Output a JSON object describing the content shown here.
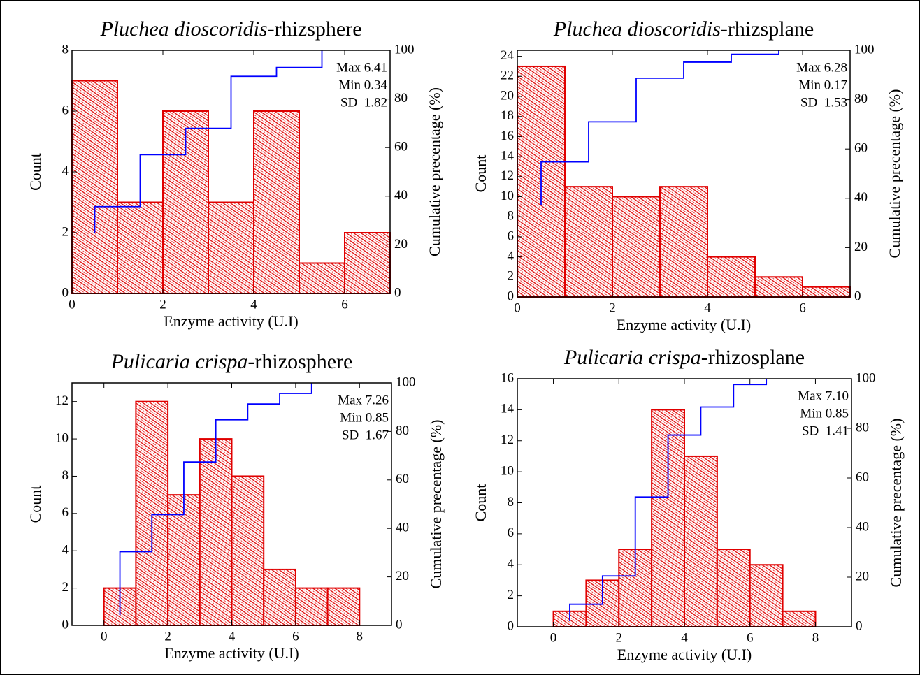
{
  "chart_data": [
    {
      "type": "histogram",
      "title": {
        "species": "Pluchea dioscoridis",
        "part": "-rhizsphere"
      },
      "xlabel": "Enzyme activity (U.I)",
      "ylabel": "Count",
      "y2label": "Cumulative precentage (%)",
      "bins": [
        0,
        1,
        2,
        3,
        4,
        5,
        6,
        7
      ],
      "counts": [
        7,
        3,
        6,
        3,
        6,
        1,
        2
      ],
      "color": "#e00000",
      "xlim": [
        0,
        7
      ],
      "xticks": [
        0,
        2,
        4,
        6
      ],
      "ylim": [
        0,
        8
      ],
      "yticks": [
        0,
        2,
        4,
        6,
        8
      ],
      "y2lim": [
        0,
        100
      ],
      "y2ticks": [
        0,
        20,
        40,
        60,
        80,
        100
      ],
      "cumulative": {
        "axis": "y2",
        "color": "#0000ff",
        "x": [
          0.5,
          0.5,
          1.5,
          1.5,
          2.5,
          2.5,
          3.5,
          3.5,
          4.5,
          4.5,
          5.5,
          5.5
        ],
        "values": [
          25,
          35.7,
          35.7,
          57.1,
          57.1,
          67.9,
          67.9,
          89.3,
          89.3,
          92.9,
          92.9,
          100
        ]
      },
      "stats": [
        "Max 6.41",
        "Min 0.34",
        "SD  1.82"
      ]
    },
    {
      "type": "histogram",
      "title": {
        "species": "Pluchea dioscoridis",
        "part": "-rhizsplane"
      },
      "xlabel": "Enzyme activity (U.I)",
      "ylabel": "Count",
      "y2label": "Cumulative precentage (%)",
      "bins": [
        0,
        1,
        2,
        3,
        4,
        5,
        6,
        7
      ],
      "counts": [
        23,
        11,
        10,
        11,
        4,
        2,
        1
      ],
      "color": "#e00000",
      "xlim": [
        0,
        7
      ],
      "xticks": [
        0,
        2,
        4,
        6
      ],
      "ylim": [
        0,
        24.6
      ],
      "yticks": [
        0,
        2,
        4,
        6,
        8,
        10,
        12,
        14,
        16,
        18,
        20,
        22,
        24
      ],
      "y2lim": [
        0,
        100
      ],
      "y2ticks": [
        0,
        20,
        40,
        60,
        80,
        100
      ],
      "cumulative": {
        "axis": "y2",
        "color": "#0000ff",
        "x": [
          0.5,
          0.5,
          1.5,
          1.5,
          2.5,
          2.5,
          3.5,
          3.5,
          4.5,
          4.5,
          5.5,
          5.5
        ],
        "values": [
          37.1,
          54.8,
          54.8,
          71,
          71,
          88.7,
          88.7,
          95.2,
          95.2,
          98.4,
          98.4,
          100
        ]
      },
      "stats": [
        "Max 6.28",
        "Min 0.17",
        "SD  1.53"
      ]
    },
    {
      "type": "histogram",
      "title": {
        "species": "Pulicaria crispa",
        "part": "-rhizosphere"
      },
      "xlabel": "Enzyme activity (U.I)",
      "ylabel": "Count",
      "y2label": "Cumulative precentage (%)",
      "bins": [
        0,
        1,
        2,
        3,
        4,
        5,
        6,
        7,
        8
      ],
      "counts": [
        2,
        12,
        7,
        10,
        8,
        3,
        2,
        2
      ],
      "color": "#e00000",
      "xlim": [
        -1,
        9
      ],
      "xticks": [
        0,
        2,
        4,
        6,
        8
      ],
      "ylim": [
        0,
        13
      ],
      "yticks": [
        0,
        2,
        4,
        6,
        8,
        10,
        12
      ],
      "y2lim": [
        0,
        100
      ],
      "y2ticks": [
        0,
        20,
        40,
        60,
        80,
        100
      ],
      "cumulative": {
        "axis": "y2",
        "color": "#0000ff",
        "x": [
          0.5,
          0.5,
          1.5,
          1.5,
          2.5,
          2.5,
          3.5,
          3.5,
          4.5,
          4.5,
          5.5,
          5.5,
          6.5,
          6.5
        ],
        "values": [
          4.3,
          30.4,
          30.4,
          45.7,
          45.7,
          67.4,
          67.4,
          84.8,
          84.8,
          91.3,
          91.3,
          95.7,
          95.7,
          100
        ]
      },
      "stats": [
        "Max 7.26",
        "Min 0.85",
        "SD  1.67"
      ]
    },
    {
      "type": "histogram",
      "title": {
        "species": "Pulicaria crispa",
        "part": "-rhizosplane"
      },
      "xlabel": "Enzyme activity (U.I)",
      "ylabel": "Count",
      "y2label": "Cumulative precentage (%)",
      "bins": [
        0,
        1,
        2,
        3,
        4,
        5,
        6,
        7,
        8
      ],
      "counts": [
        1,
        3,
        5,
        14,
        11,
        5,
        4,
        1
      ],
      "color": "#e00000",
      "xlim": [
        -1.1,
        9.1
      ],
      "xticks": [
        0,
        2,
        4,
        6,
        8
      ],
      "ylim": [
        0,
        16
      ],
      "yticks": [
        0,
        2,
        4,
        6,
        8,
        10,
        12,
        14,
        16
      ],
      "y2lim": [
        0,
        100
      ],
      "y2ticks": [
        0,
        20,
        40,
        60,
        80,
        100
      ],
      "cumulative": {
        "axis": "y2",
        "color": "#0000ff",
        "x": [
          0.5,
          0.5,
          1.5,
          1.5,
          2.5,
          2.5,
          3.5,
          3.5,
          4.5,
          4.5,
          5.5,
          5.5,
          6.5,
          6.5
        ],
        "values": [
          2.3,
          9.1,
          9.1,
          20.5,
          20.5,
          52.3,
          52.3,
          77.3,
          77.3,
          88.6,
          88.6,
          97.7,
          97.7,
          100
        ]
      },
      "stats": [
        "Max 7.10",
        "Min 0.85",
        "SD  1.41"
      ]
    }
  ]
}
